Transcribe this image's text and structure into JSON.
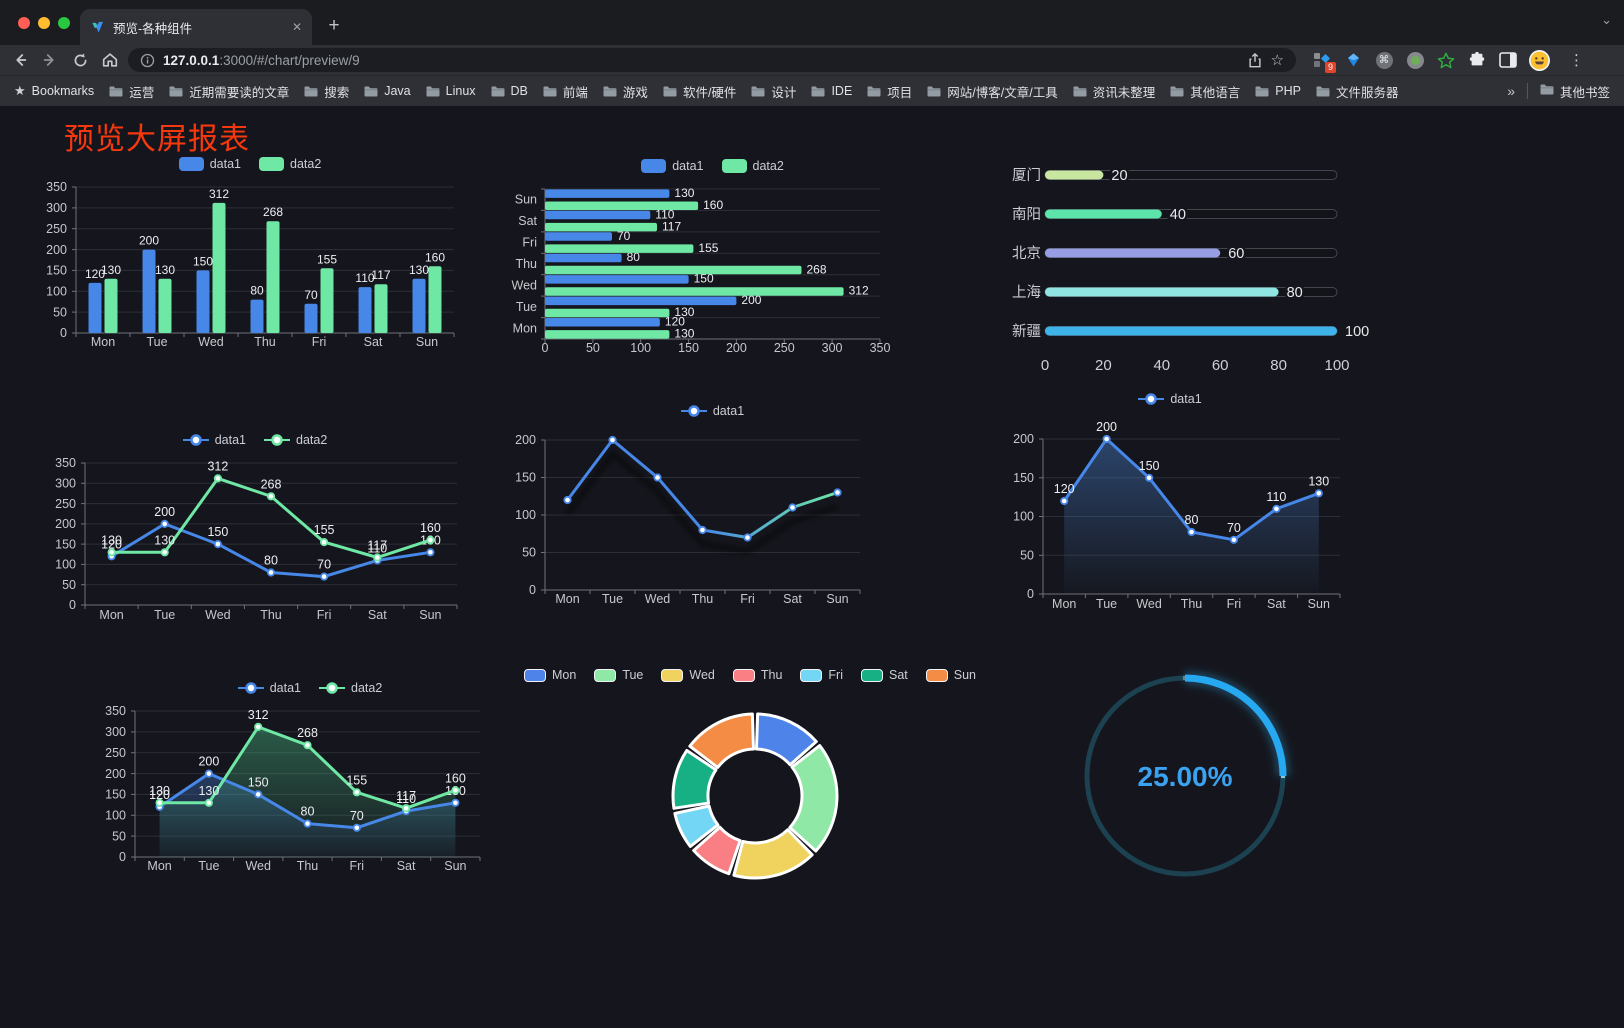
{
  "browser": {
    "window_controls": [
      "close",
      "minimize",
      "zoom"
    ],
    "tab": {
      "title": "预览-各种组件",
      "favicon": "v-logo-icon",
      "close_label": "✕",
      "new_tab_label": "+"
    },
    "url": {
      "host": "127.0.0.1",
      "rest": ":3000/#/chart/preview/9"
    },
    "extensions_badge": "9",
    "bookmarks_label": "Bookmarks",
    "bookmarks": [
      "运营",
      "近期需要读的文章",
      "搜索",
      "Java",
      "Linux",
      "DB",
      "前端",
      "游戏",
      "软件/硬件",
      "设计",
      "IDE",
      "项目",
      "网站/博客/文章/工具",
      "资讯未整理",
      "其他语言",
      "PHP",
      "文件服务器"
    ],
    "bookmarks_overflow": "»",
    "other_bookmarks": "其他书签"
  },
  "page": {
    "title": "预览大屏报表",
    "title_color": "#f5380e",
    "background": "#15161d"
  },
  "chart_data": [
    {
      "id": "c1",
      "type": "bar",
      "legend_position": "top",
      "grid": true,
      "value_labels": true,
      "categories": [
        "Mon",
        "Tue",
        "Wed",
        "Thu",
        "Fri",
        "Sat",
        "Sun"
      ],
      "ylim": [
        0,
        350
      ],
      "ytick": 50,
      "series": [
        {
          "name": "data1",
          "color": "#4687e8",
          "values": [
            120,
            200,
            150,
            80,
            70,
            110,
            130
          ]
        },
        {
          "name": "data2",
          "color": "#6fe8a5",
          "values": [
            130,
            130,
            312,
            268,
            155,
            117,
            160
          ]
        }
      ]
    },
    {
      "id": "c2",
      "type": "bar-horizontal",
      "legend_position": "top",
      "grid": true,
      "value_labels": true,
      "categories_top_to_bottom": [
        "Sun",
        "Sat",
        "Fri",
        "Thu",
        "Wed",
        "Tue",
        "Mon"
      ],
      "xlim": [
        0,
        350
      ],
      "xtick": 50,
      "series": [
        {
          "name": "data1",
          "color": "#4687e8",
          "values": [
            130,
            110,
            70,
            80,
            150,
            200,
            120
          ]
        },
        {
          "name": "data2",
          "color": "#6fe8a5",
          "values": [
            160,
            117,
            155,
            268,
            312,
            130,
            130
          ]
        }
      ]
    },
    {
      "id": "c3",
      "type": "progress-bars",
      "xlim": [
        0,
        100
      ],
      "xticks": [
        0,
        20,
        40,
        60,
        80,
        100
      ],
      "items": [
        {
          "label": "厦门",
          "value": 20,
          "color": "#c8e6a0"
        },
        {
          "label": "南阳",
          "value": 40,
          "color": "#5de4ab"
        },
        {
          "label": "北京",
          "value": 60,
          "color": "#979ee3"
        },
        {
          "label": "上海",
          "value": 80,
          "color": "#90e5e2"
        },
        {
          "label": "新疆",
          "value": 100,
          "color": "#3db3ea"
        }
      ]
    },
    {
      "id": "c4",
      "type": "line",
      "legend_position": "top",
      "grid": true,
      "value_labels": true,
      "categories": [
        "Mon",
        "Tue",
        "Wed",
        "Thu",
        "Fri",
        "Sat",
        "Sun"
      ],
      "ylim": [
        0,
        350
      ],
      "ytick": 50,
      "series": [
        {
          "name": "data1",
          "color": "#4687e8",
          "values": [
            120,
            200,
            150,
            80,
            70,
            110,
            130
          ]
        },
        {
          "name": "data2",
          "color": "#6fe8a5",
          "values": [
            130,
            130,
            312,
            268,
            155,
            117,
            160
          ]
        }
      ]
    },
    {
      "id": "c5",
      "type": "line",
      "legend_position": "top",
      "grid": true,
      "value_labels": false,
      "categories": [
        "Mon",
        "Tue",
        "Wed",
        "Thu",
        "Fri",
        "Sat",
        "Sun"
      ],
      "ylim": [
        0,
        200
      ],
      "ytick": 50,
      "series": [
        {
          "name": "data1",
          "color": "#4687e8",
          "gradient": [
            "#4687e8",
            "#4687e8",
            "#6fe8a5"
          ],
          "shadow": true,
          "values": [
            120,
            200,
            150,
            80,
            70,
            110,
            130
          ]
        }
      ]
    },
    {
      "id": "c6",
      "type": "area",
      "legend_position": "top",
      "grid": true,
      "value_labels": true,
      "categories": [
        "Mon",
        "Tue",
        "Wed",
        "Thu",
        "Fri",
        "Sat",
        "Sun"
      ],
      "ylim": [
        0,
        200
      ],
      "ytick": 50,
      "series": [
        {
          "name": "data1",
          "color": "#4687e8",
          "area": {
            "from": "rgba(70,125,200,0.45)",
            "to": "rgba(70,125,200,0.02)"
          },
          "values": [
            120,
            200,
            150,
            80,
            70,
            110,
            130
          ]
        }
      ]
    },
    {
      "id": "c7",
      "type": "area",
      "legend_position": "top",
      "grid": true,
      "value_labels": true,
      "categories": [
        "Mon",
        "Tue",
        "Wed",
        "Thu",
        "Fri",
        "Sat",
        "Sun"
      ],
      "ylim": [
        0,
        350
      ],
      "ytick": 50,
      "series": [
        {
          "name": "data1",
          "color": "#4687e8",
          "area": {
            "from": "rgba(64,120,200,0.40)",
            "to": "rgba(64,120,200,0.03)"
          },
          "values": [
            120,
            200,
            150,
            80,
            70,
            110,
            130
          ]
        },
        {
          "name": "data2",
          "color": "#6fe8a5",
          "area": {
            "from": "rgba(70,175,125,0.45)",
            "to": "rgba(70,175,125,0.04)"
          },
          "values": [
            130,
            130,
            312,
            268,
            155,
            117,
            160
          ]
        }
      ]
    },
    {
      "id": "c8",
      "type": "pie",
      "subtype": "donut",
      "legend_position": "top",
      "items": [
        {
          "label": "Mon",
          "value": 120,
          "color": "#4e83ea"
        },
        {
          "label": "Tue",
          "value": 200,
          "color": "#8fe8a5"
        },
        {
          "label": "Wed",
          "value": 150,
          "color": "#f0d35e"
        },
        {
          "label": "Thu",
          "value": 80,
          "color": "#f97f84"
        },
        {
          "label": "Fri",
          "value": 70,
          "color": "#74d6f5"
        },
        {
          "label": "Sat",
          "value": 110,
          "color": "#17b084"
        },
        {
          "label": "Sun",
          "value": 130,
          "color": "#f58c46"
        }
      ]
    },
    {
      "id": "c9",
      "type": "gauge",
      "percent": 25,
      "value_label": "25.00%",
      "color": "#27a9f1",
      "track_color": "#1c4150",
      "text_color": "#3aa2f0"
    }
  ]
}
